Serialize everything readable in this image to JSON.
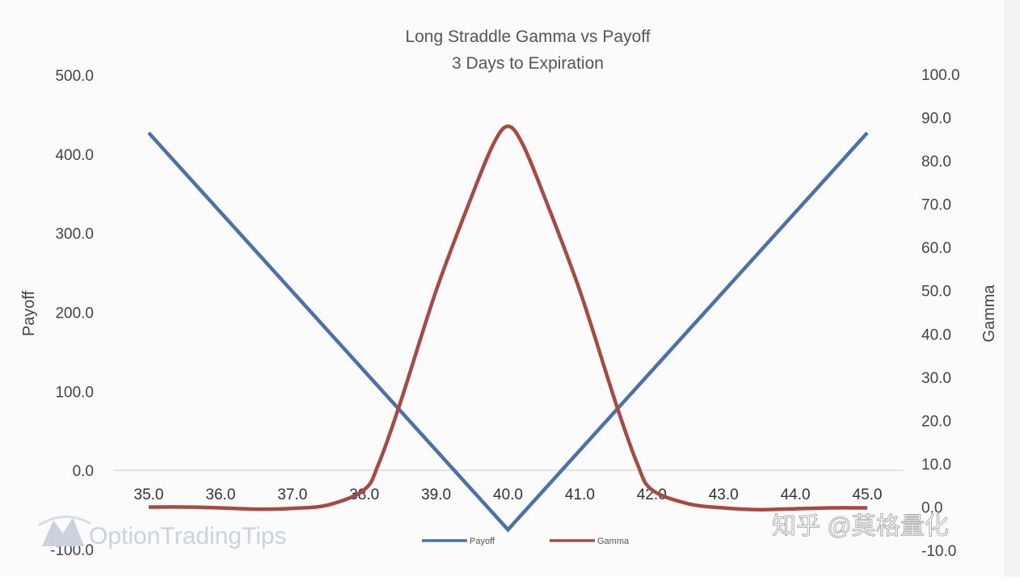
{
  "chart_data": {
    "type": "line",
    "title": "Long Straddle Gamma vs Payoff",
    "subtitle": "3 Days to Expiration",
    "xlabel": "",
    "ylabel": "Payoff",
    "y2label": "Gamma",
    "x": [
      35.0,
      35.5,
      36.0,
      36.5,
      37.0,
      37.5,
      38.0,
      38.5,
      39.0,
      39.5,
      40.0,
      40.5,
      41.0,
      41.5,
      42.0,
      42.5,
      43.0,
      43.5,
      44.0,
      44.5,
      45.0
    ],
    "x_ticks": [
      "35.0",
      "36.0",
      "37.0",
      "38.0",
      "39.0",
      "40.0",
      "41.0",
      "42.0",
      "43.0",
      "44.0",
      "45.0"
    ],
    "xlim": [
      35.0,
      45.0
    ],
    "ylim": [
      -100,
      500
    ],
    "y_ticks": [
      "500.0",
      "400.0",
      "300.0",
      "200.0",
      "100.0",
      "0.0",
      "-100.0"
    ],
    "y2lim": [
      -10,
      100
    ],
    "y2_ticks": [
      "100.0",
      "90.0",
      "80.0",
      "70.0",
      "60.0",
      "50.0",
      "40.0",
      "30.0",
      "20.0",
      "10.0",
      "0.0",
      "-10.0"
    ],
    "series": [
      {
        "name": "Payoff",
        "axis": "left",
        "color": "#4a72a8",
        "points": [
          [
            35.0,
            427
          ],
          [
            40.0,
            -75
          ],
          [
            45.0,
            427
          ]
        ]
      },
      {
        "name": "Gamma",
        "axis": "right",
        "color": "#a84946",
        "points": [
          [
            35.0,
            0.0
          ],
          [
            35.5,
            0.0
          ],
          [
            36.0,
            -0.2
          ],
          [
            36.5,
            -0.5
          ],
          [
            37.0,
            -0.3
          ],
          [
            37.5,
            0.5
          ],
          [
            38.0,
            4.0
          ],
          [
            38.2,
            10.0
          ],
          [
            38.5,
            24.0
          ],
          [
            39.0,
            50.0
          ],
          [
            39.5,
            72.0
          ],
          [
            39.8,
            84.0
          ],
          [
            40.0,
            88.0
          ],
          [
            40.2,
            84.0
          ],
          [
            40.5,
            72.0
          ],
          [
            41.0,
            50.0
          ],
          [
            41.5,
            24.0
          ],
          [
            41.8,
            10.0
          ],
          [
            42.0,
            4.0
          ],
          [
            42.5,
            0.8
          ],
          [
            43.0,
            -0.2
          ],
          [
            43.5,
            -0.6
          ],
          [
            44.0,
            -0.4
          ],
          [
            44.5,
            -0.2
          ],
          [
            45.0,
            -0.2
          ]
        ]
      }
    ],
    "grid": false,
    "legend_position": "bottom"
  },
  "watermarks": {
    "source_logo_text": "OptionTradingTips",
    "zhihu_text": "知乎 @莫格量化"
  },
  "colors": {
    "background": "#fbfbfb",
    "zero_line": "#d4d4d4",
    "watermark_icon": "#c9d3e0"
  }
}
